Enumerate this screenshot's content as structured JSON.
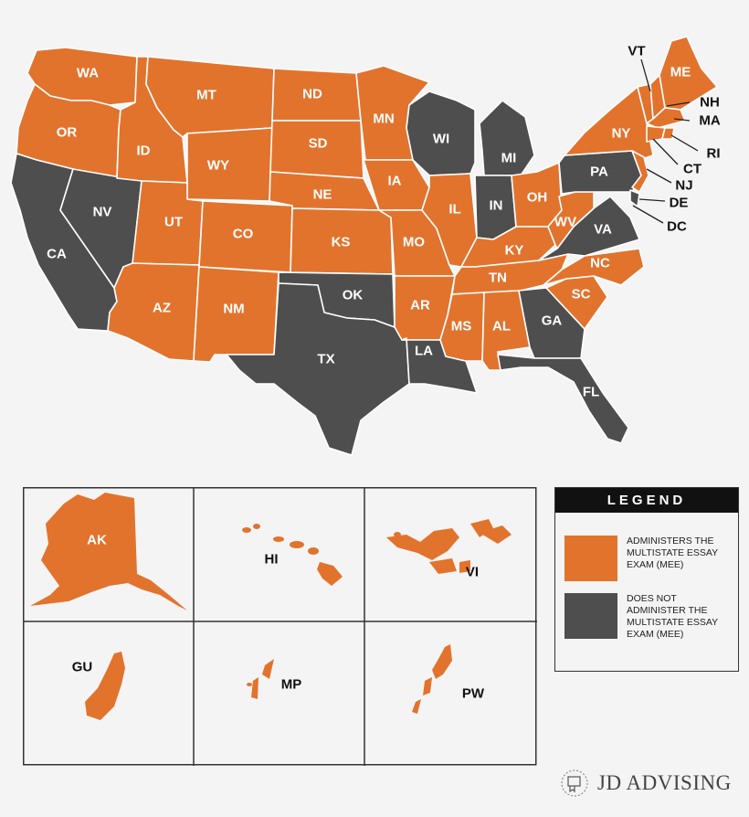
{
  "colors": {
    "mee": "#e2732d",
    "no_mee": "#4d4e4d",
    "background": "#f4f4f4"
  },
  "states": {
    "WA": "WA",
    "OR": "OR",
    "CA": "CA",
    "NV": "NV",
    "ID": "ID",
    "MT": "MT",
    "WY": "WY",
    "UT": "UT",
    "AZ": "AZ",
    "CO": "CO",
    "NM": "NM",
    "ND": "ND",
    "SD": "SD",
    "NE": "NE",
    "KS": "KS",
    "OK": "OK",
    "TX": "TX",
    "MN": "MN",
    "IA": "IA",
    "MO": "MO",
    "AR": "AR",
    "LA": "LA",
    "WI": "WI",
    "IL": "IL",
    "MI": "MI",
    "IN": "IN",
    "OH": "OH",
    "KY": "KY",
    "TN": "TN",
    "MS": "MS",
    "AL": "AL",
    "GA": "GA",
    "FL": "FL",
    "SC": "SC",
    "NC": "NC",
    "VA": "VA",
    "WV": "WV",
    "PA": "PA",
    "NY": "NY",
    "ME": "ME",
    "VT": "VT",
    "NH": "NH",
    "MA": "MA",
    "RI": "RI",
    "CT": "CT",
    "NJ": "NJ",
    "DE": "DE",
    "DC": "DC"
  },
  "status": {
    "mee": [
      "WA",
      "OR",
      "ID",
      "MT",
      "WY",
      "UT",
      "AZ",
      "CO",
      "NM",
      "ND",
      "SD",
      "NE",
      "KS",
      "MN",
      "IA",
      "MO",
      "AR",
      "IL",
      "OH",
      "KY",
      "TN",
      "MS",
      "AL",
      "SC",
      "NC",
      "WV",
      "NY",
      "ME",
      "VT",
      "NH",
      "MA",
      "RI",
      "CT",
      "NJ",
      "DC",
      "AK",
      "HI",
      "VI",
      "GU",
      "MP",
      "PW"
    ],
    "no_mee": [
      "CA",
      "NV",
      "OK",
      "TX",
      "LA",
      "WI",
      "MI",
      "IN",
      "GA",
      "FL",
      "PA",
      "VA",
      "DE"
    ]
  },
  "insets": {
    "AK": "AK",
    "HI": "HI",
    "VI": "VI",
    "GU": "GU",
    "MP": "MP",
    "PW": "PW"
  },
  "legend": {
    "title": "LEGEND",
    "mee_text": "ADMINISTERS THE MULTISTATE ESSAY EXAM (MEE)",
    "no_mee_text": "DOES NOT ADMINISTER THE MULTISTATE ESSAY EXAM (MEE)"
  },
  "brand": {
    "name": "JD ADVISING",
    "logo_icon": "diploma-seal-icon"
  }
}
